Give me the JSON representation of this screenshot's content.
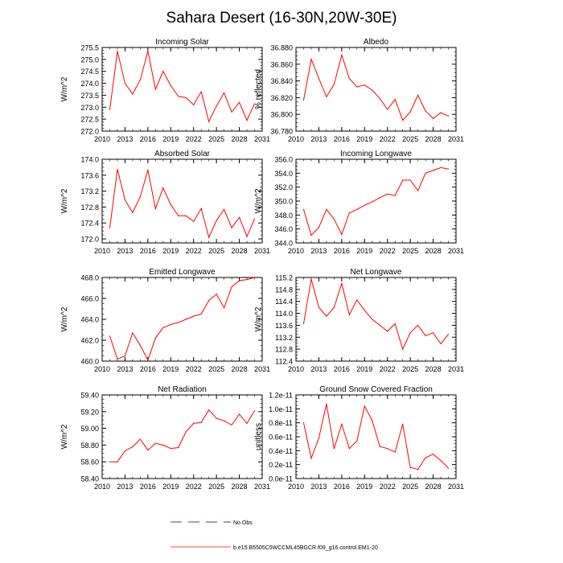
{
  "figure": {
    "title": "Sahara Desert (16-30N,20W-30E)",
    "line_color": "#ff0000",
    "legend": {
      "no_obs_label": "No Obs",
      "no_obs_color": "#00008b",
      "model_label": "b.e15.B5505C5WCCML45BGCR.f09_g16.control.EM1-20",
      "model_color": "#ff0000"
    }
  },
  "chart_data": [
    {
      "type": "line",
      "title": "Incoming Solar",
      "ylabel": "W/m^2",
      "xlim": [
        2010,
        2031
      ],
      "xticks": [
        "2010",
        "2013",
        "2016",
        "2019",
        "2022",
        "2025",
        "2028",
        "2031"
      ],
      "ylim": [
        272.0,
        275.5
      ],
      "yticks": [
        "272.0",
        "272.5",
        "273.0",
        "273.5",
        "274.0",
        "274.5",
        "275.0",
        "275.5"
      ],
      "x": [
        2011,
        2012,
        2013,
        2014,
        2015,
        2016,
        2017,
        2018,
        2019,
        2020,
        2021,
        2022,
        2023,
        2024,
        2025,
        2026,
        2027,
        2028,
        2029,
        2030
      ],
      "values": [
        272.9,
        275.35,
        274.0,
        273.55,
        274.15,
        275.35,
        273.75,
        274.5,
        273.9,
        273.45,
        273.4,
        273.1,
        273.65,
        272.4,
        273.05,
        273.6,
        272.8,
        273.2,
        272.45,
        273.15
      ]
    },
    {
      "type": "line",
      "title": "Albedo",
      "ylabel": "% reflected",
      "xlim": [
        2010,
        2031
      ],
      "xticks": [
        "2010",
        "2013",
        "2016",
        "2019",
        "2022",
        "2025",
        "2028",
        "2031"
      ],
      "ylim": [
        36.78,
        36.88
      ],
      "yticks": [
        "36.780",
        "36.800",
        "36.820",
        "36.840",
        "36.860",
        "36.880"
      ],
      "x": [
        2011,
        2012,
        2013,
        2014,
        2015,
        2016,
        2017,
        2018,
        2019,
        2020,
        2021,
        2022,
        2023,
        2024,
        2025,
        2026,
        2027,
        2028,
        2029,
        2030
      ],
      "values": [
        36.817,
        36.866,
        36.843,
        36.821,
        36.836,
        36.871,
        36.843,
        36.833,
        36.835,
        36.829,
        36.819,
        36.806,
        36.818,
        36.793,
        36.803,
        36.823,
        36.804,
        36.795,
        36.802,
        36.798
      ]
    },
    {
      "type": "line",
      "title": "Absorbed Solar",
      "ylabel": "W/m^2",
      "xlim": [
        2010,
        2031
      ],
      "xticks": [
        "2010",
        "2013",
        "2016",
        "2019",
        "2022",
        "2025",
        "2028",
        "2031"
      ],
      "ylim": [
        171.9,
        174.0
      ],
      "yticks": [
        "172.0",
        "172.4",
        "172.8",
        "173.2",
        "173.6",
        "174.0"
      ],
      "x": [
        2011,
        2012,
        2013,
        2014,
        2015,
        2016,
        2017,
        2018,
        2019,
        2020,
        2021,
        2022,
        2023,
        2024,
        2025,
        2026,
        2027,
        2028,
        2029,
        2030
      ],
      "values": [
        172.28,
        173.75,
        172.98,
        172.66,
        173.06,
        173.73,
        172.76,
        173.28,
        172.86,
        172.58,
        172.58,
        172.44,
        172.76,
        172.04,
        172.46,
        172.74,
        172.28,
        172.54,
        172.06,
        172.5
      ]
    },
    {
      "type": "line",
      "title": "Incoming Longwave",
      "ylabel": "W/m^2",
      "xlim": [
        2010,
        2031
      ],
      "xticks": [
        "2010",
        "2013",
        "2016",
        "2019",
        "2022",
        "2025",
        "2028",
        "2031"
      ],
      "ylim": [
        344.0,
        356.0
      ],
      "yticks": [
        "344.0",
        "346.0",
        "348.0",
        "350.0",
        "352.0",
        "354.0",
        "356.0"
      ],
      "x": [
        2011,
        2012,
        2013,
        2014,
        2015,
        2016,
        2017,
        2018,
        2019,
        2020,
        2021,
        2022,
        2023,
        2024,
        2025,
        2026,
        2027,
        2028,
        2029,
        2030
      ],
      "values": [
        348.8,
        345.1,
        346.2,
        348.8,
        347.4,
        345.2,
        348.3,
        348.8,
        349.4,
        349.9,
        350.5,
        351.0,
        350.8,
        353.0,
        353.0,
        351.5,
        354.0,
        354.4,
        354.8,
        354.6
      ]
    },
    {
      "type": "line",
      "title": "Emitted Longwave",
      "ylabel": "W/m^2",
      "xlim": [
        2010,
        2031
      ],
      "xticks": [
        "2010",
        "2013",
        "2016",
        "2019",
        "2022",
        "2025",
        "2028",
        "2031"
      ],
      "ylim": [
        460.0,
        468.0
      ],
      "yticks": [
        "460.0",
        "462.0",
        "464.0",
        "466.0",
        "468.0"
      ],
      "x": [
        2011,
        2012,
        2013,
        2014,
        2015,
        2016,
        2017,
        2018,
        2019,
        2020,
        2021,
        2022,
        2023,
        2024,
        2025,
        2026,
        2027,
        2028,
        2029,
        2030
      ],
      "values": [
        462.4,
        460.2,
        460.5,
        462.7,
        461.5,
        460.1,
        462.2,
        463.2,
        463.5,
        463.7,
        464.0,
        464.3,
        464.5,
        465.8,
        466.4,
        465.1,
        467.1,
        467.7,
        467.8,
        468.0
      ]
    },
    {
      "type": "line",
      "title": "Net Longwave",
      "ylabel": "W/m^2",
      "xlim": [
        2010,
        2031
      ],
      "xticks": [
        "2010",
        "2013",
        "2016",
        "2019",
        "2022",
        "2025",
        "2028",
        "2031"
      ],
      "ylim": [
        112.4,
        115.2
      ],
      "yticks": [
        "112.4",
        "112.8",
        "113.2",
        "113.6",
        "114.0",
        "114.4",
        "114.8",
        "115.2"
      ],
      "x": [
        2011,
        2012,
        2013,
        2014,
        2015,
        2016,
        2017,
        2018,
        2019,
        2020,
        2021,
        2022,
        2023,
        2024,
        2025,
        2026,
        2027,
        2028,
        2029,
        2030
      ],
      "values": [
        113.65,
        115.15,
        114.2,
        113.9,
        114.2,
        115.0,
        113.95,
        114.45,
        114.1,
        113.8,
        113.6,
        113.4,
        113.65,
        112.8,
        113.35,
        113.6,
        113.25,
        113.35,
        112.98,
        113.3
      ]
    },
    {
      "type": "line",
      "title": "Net Radiation",
      "ylabel": "W/m^2",
      "xlim": [
        2010,
        2031
      ],
      "xticks": [
        "2010",
        "2013",
        "2016",
        "2019",
        "2022",
        "2025",
        "2028",
        "2031"
      ],
      "ylim": [
        58.4,
        59.4
      ],
      "yticks": [
        "58.40",
        "58.60",
        "58.80",
        "59.00",
        "59.20",
        "59.40"
      ],
      "x": [
        2011,
        2012,
        2013,
        2014,
        2015,
        2016,
        2017,
        2018,
        2019,
        2020,
        2021,
        2022,
        2023,
        2024,
        2025,
        2026,
        2027,
        2028,
        2029,
        2030
      ],
      "values": [
        58.6,
        58.6,
        58.73,
        58.78,
        58.87,
        58.74,
        58.82,
        58.8,
        58.76,
        58.77,
        58.96,
        59.06,
        59.07,
        59.22,
        59.12,
        59.09,
        59.04,
        59.17,
        59.06,
        59.21
      ]
    },
    {
      "type": "line",
      "title": "Ground Snow Covered Fraction",
      "ylabel": "unitless",
      "xlim": [
        2010,
        2031
      ],
      "xticks": [
        "2010",
        "2013",
        "2016",
        "2019",
        "2022",
        "2025",
        "2028",
        "2031"
      ],
      "ylim": [
        0.0,
        1.2e-11
      ],
      "yticks": [
        "0.0e-11",
        "0.2e-11",
        "0.4e-11",
        "0.6e-11",
        "0.8e-11",
        "1.0e-11",
        "1.2e-11"
      ],
      "x": [
        2011,
        2012,
        2013,
        2014,
        2015,
        2016,
        2017,
        2018,
        2019,
        2020,
        2021,
        2022,
        2023,
        2024,
        2025,
        2026,
        2027,
        2028,
        2029,
        2030
      ],
      "values": [
        8e-12,
        2.9e-12,
        5.8e-12,
        1.07e-11,
        4.3e-12,
        7.8e-12,
        4.3e-12,
        5.4e-12,
        1.04e-11,
        8.3e-12,
        4.6e-12,
        4.3e-12,
        3.8e-12,
        7.8e-12,
        1.6e-12,
        1.3e-12,
        3e-12,
        3.5e-12,
        2.6e-12,
        1.5e-12
      ]
    }
  ]
}
